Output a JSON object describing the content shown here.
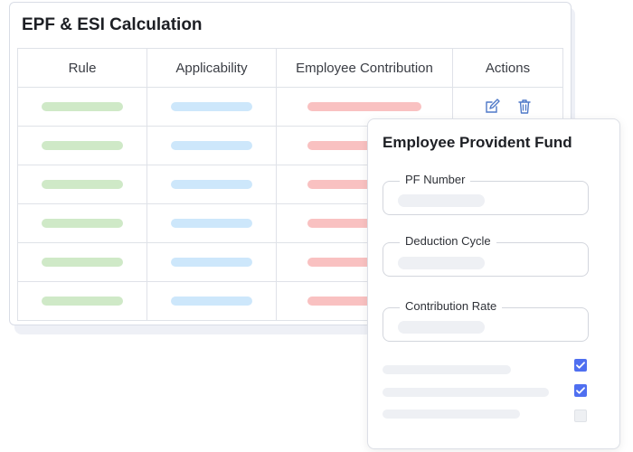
{
  "main": {
    "title": "EPF & ESI Calculation",
    "columns": [
      "Rule",
      "Applicability",
      "Employee Contribution",
      "Actions"
    ],
    "row_count": 6,
    "colors": {
      "rule_pill": "#cfe9c7",
      "applicability_pill": "#cde7fb",
      "contribution_pill": "#f9c1c1",
      "icon": "#4f79c8"
    },
    "action_icons": [
      "edit-icon",
      "trash-icon"
    ]
  },
  "pf_panel": {
    "title": "Employee Provident Fund",
    "fields": [
      {
        "label": "PF Number"
      },
      {
        "label": "Deduction Cycle"
      },
      {
        "label": "Contribution Rate"
      }
    ],
    "options": [
      {
        "checked": true
      },
      {
        "checked": true
      },
      {
        "checked": false
      }
    ],
    "checkbox_color": "#4f6ff0"
  }
}
